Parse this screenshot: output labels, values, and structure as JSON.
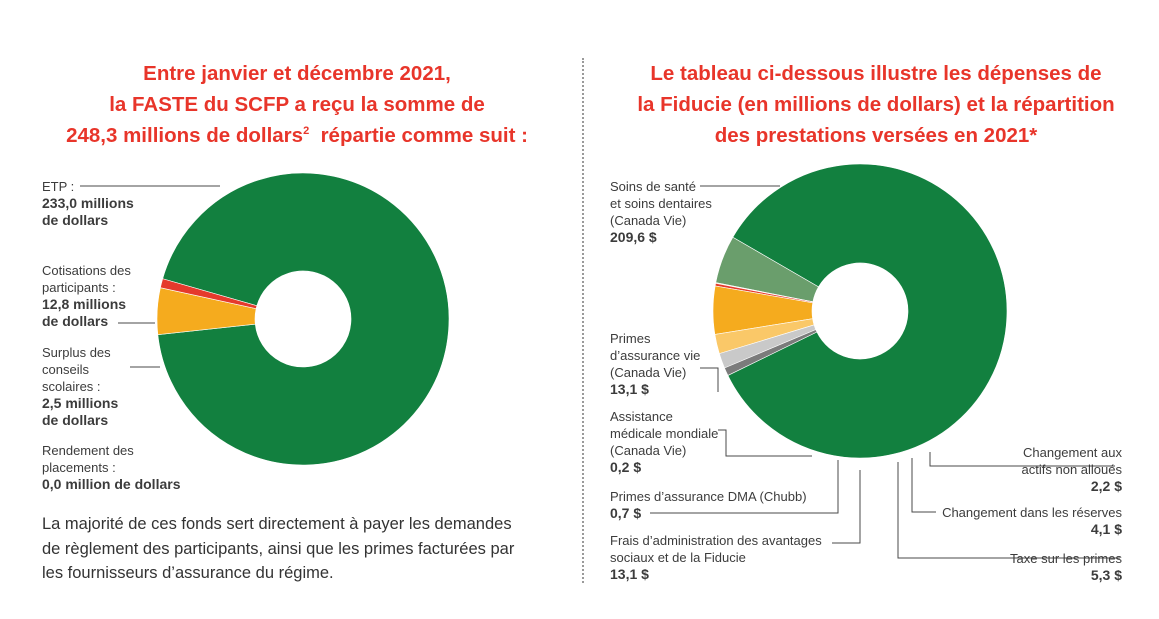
{
  "left_title": {
    "line1": "Entre janvier et décembre 2021,",
    "line2": "la FASTE du SCFP a reçu la somme de",
    "line3_main": "248,3 millions de dollars",
    "line3_sup": "2",
    "line3_end": "  répartie comme suit :"
  },
  "right_title": {
    "line1": "Le tableau ci-dessous illustre les dépenses de",
    "line2": "la Fiducie (en millions de dollars) et la répartition",
    "line3": "des prestations versées en 2021*"
  },
  "note": {
    "line1": "La majorité de ces fonds sert directement à payer les demandes",
    "line2": "de règlement des participants, ainsi que les primes facturées par",
    "line3": "les fournisseurs d’assurance du régime."
  },
  "left_labels": {
    "etp": {
      "l1": "ETP :",
      "v1": "233,0 millions",
      "v2": "de dollars"
    },
    "cotisations": {
      "l1": "Cotisations des",
      "l2": "participants :",
      "v1": "12,8 millions",
      "v2": "de dollars"
    },
    "surplus": {
      "l1": "Surplus des",
      "l2": "conseils",
      "l3": "scolaires :",
      "v1": "2,5 millions",
      "v2": "de dollars"
    },
    "rendement": {
      "l1": "Rendement des",
      "l2": "placements :",
      "v1": "0,0 million de dollars"
    }
  },
  "right_labels": {
    "soins": {
      "l1": "Soins de santé",
      "l2": "et soins dentaires",
      "l3": "(Canada Vie)",
      "v": "209,6 $"
    },
    "primes_vie": {
      "l1": "Primes",
      "l2": "d’assurance vie",
      "l3": "(Canada Vie)",
      "v": "13,1 $"
    },
    "assistance": {
      "l1": "Assistance",
      "l2": "médicale mondiale",
      "l3": "(Canada Vie)",
      "v": "0,2 $"
    },
    "dma": {
      "l1": "Primes d’assurance DMA (Chubb)",
      "v": "0,7 $"
    },
    "frais": {
      "l1": "Frais d’administration des avantages",
      "l2": "sociaux et de la Fiducie",
      "v": "13,1 $"
    },
    "actifs": {
      "l1": "Changement aux",
      "l2": "actifs non alloués",
      "v": "2,2 $"
    },
    "reserves": {
      "l1": "Changement dans les réserves",
      "v": "4,1 $"
    },
    "taxe": {
      "l1": "Taxe sur les primes",
      "v": "5,3 $"
    }
  },
  "chart_data": [
    {
      "type": "pie",
      "donut": true,
      "total": 248.3,
      "unit": "millions de dollars",
      "categories": [
        "ETP",
        "Cotisations des participants",
        "Surplus des conseils scolaires",
        "Rendement des placements"
      ],
      "values": [
        233.0,
        12.8,
        2.5,
        0.0
      ],
      "colors": [
        "#12803f",
        "#f5ab1e",
        "#e53a2c",
        "#888888"
      ]
    },
    {
      "type": "pie",
      "donut": true,
      "unit": "millions de dollars",
      "categories": [
        "Soins de santé et soins dentaires (Canada Vie)",
        "Primes d’assurance vie (Canada Vie)",
        "Assistance médicale mondiale (Canada Vie)",
        "Primes d’assurance DMA (Chubb)",
        "Frais d’administration des avantages sociaux et de la Fiducie",
        "Taxe sur les primes",
        "Changement dans les réserves",
        "Changement aux actifs non alloués"
      ],
      "values": [
        209.6,
        13.1,
        0.2,
        0.7,
        13.1,
        5.3,
        4.1,
        2.2
      ],
      "colors": [
        "#12803f",
        "#6a9e6c",
        "#f5ab1e",
        "#e53a2c",
        "#f5ab1e",
        "#fac868",
        "#c9c9c9",
        "#7b7b7b"
      ]
    }
  ]
}
